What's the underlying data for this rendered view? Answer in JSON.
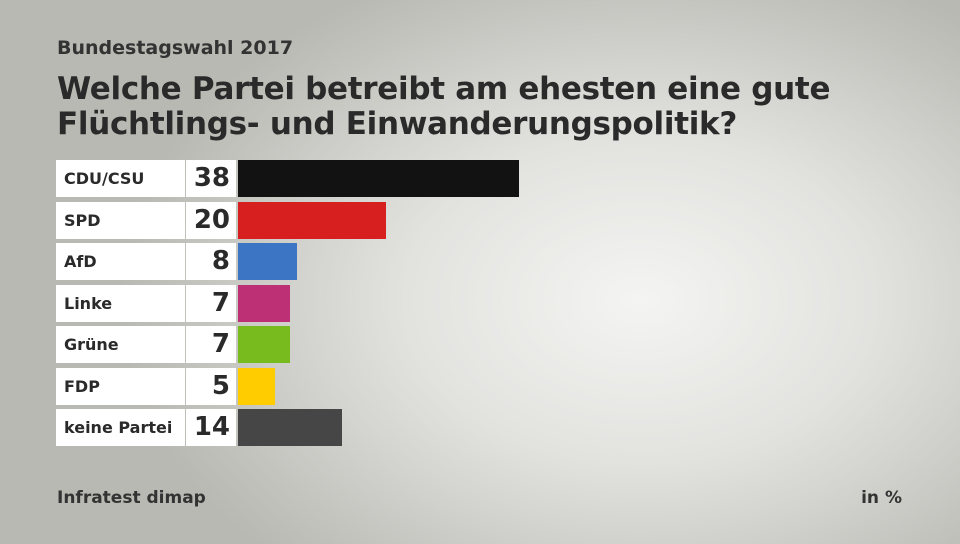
{
  "chart_data": {
    "type": "bar",
    "subtitle": "Bundestagswahl 2017",
    "title": "Welche Partei betreibt am ehesten eine gute Flüchtlings- und Einwanderungspolitik?",
    "categories": [
      "CDU/CSU",
      "SPD",
      "AfD",
      "Linke",
      "Grüne",
      "FDP",
      "keine Partei"
    ],
    "values": [
      38,
      20,
      8,
      7,
      7,
      5,
      14
    ],
    "colors": [
      "#121212",
      "#d71f1f",
      "#3c75c4",
      "#be3075",
      "#78bb1e",
      "#ffcc00",
      "#464646"
    ],
    "source": "Infratest dimap",
    "unit": "in %",
    "xlim": [
      0,
      38
    ]
  }
}
